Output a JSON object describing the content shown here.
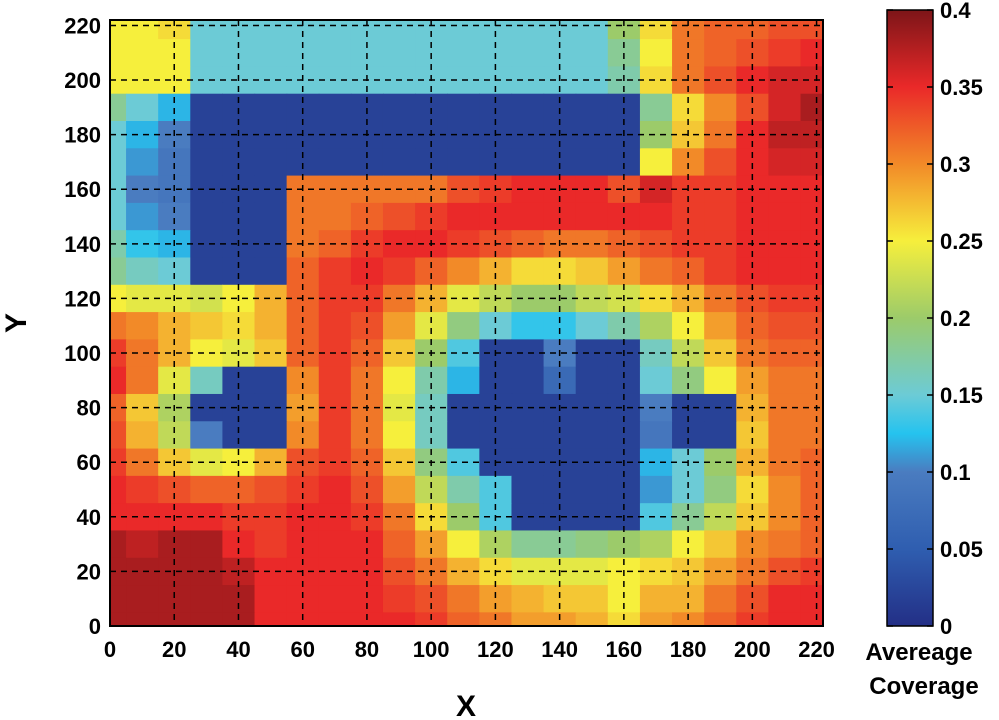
{
  "chart_data": {
    "type": "heatmap",
    "title": "",
    "xlabel": "X",
    "ylabel": "Y",
    "xlim": [
      0,
      222
    ],
    "ylim": [
      0,
      222
    ],
    "x_ticks": [
      0,
      20,
      40,
      60,
      80,
      100,
      120,
      140,
      160,
      180,
      200,
      220
    ],
    "y_ticks": [
      0,
      20,
      40,
      60,
      80,
      100,
      120,
      140,
      160,
      180,
      200,
      220
    ],
    "grid": true,
    "colorbar": {
      "label_line1": "Avereage",
      "label_line2": "Coverage",
      "range": [
        0,
        0.4
      ],
      "ticks": [
        "0",
        "0.05",
        "0.1",
        "0.15",
        "0.2",
        "0.25",
        "0.3",
        "0.35",
        "0.4"
      ],
      "colormap": "jet"
    },
    "x_coords": [
      0,
      10,
      20,
      30,
      40,
      50,
      60,
      70,
      80,
      90,
      100,
      110,
      120,
      130,
      140,
      150,
      160,
      170,
      180,
      190,
      200,
      210,
      220
    ],
    "y_coords": [
      220,
      210,
      200,
      190,
      180,
      170,
      160,
      150,
      140,
      130,
      120,
      110,
      100,
      90,
      80,
      70,
      60,
      50,
      40,
      30,
      20,
      10,
      0
    ],
    "coverage_grid": [
      [
        0.25,
        0.25,
        0.26,
        0.15,
        0.15,
        0.15,
        0.15,
        0.15,
        0.15,
        0.15,
        0.15,
        0.15,
        0.15,
        0.15,
        0.15,
        0.15,
        0.2,
        0.26,
        0.31,
        0.32,
        0.32,
        0.33,
        0.33
      ],
      [
        0.25,
        0.25,
        0.25,
        0.15,
        0.15,
        0.15,
        0.15,
        0.15,
        0.15,
        0.15,
        0.15,
        0.15,
        0.15,
        0.15,
        0.15,
        0.15,
        0.18,
        0.25,
        0.31,
        0.32,
        0.33,
        0.34,
        0.35
      ],
      [
        0.25,
        0.25,
        0.25,
        0.15,
        0.15,
        0.15,
        0.15,
        0.15,
        0.15,
        0.15,
        0.15,
        0.15,
        0.15,
        0.15,
        0.15,
        0.15,
        0.17,
        0.26,
        0.31,
        0.33,
        0.35,
        0.36,
        0.36
      ],
      [
        0.18,
        0.15,
        0.12,
        0.02,
        0.02,
        0.02,
        0.02,
        0.02,
        0.02,
        0.02,
        0.02,
        0.02,
        0.02,
        0.02,
        0.02,
        0.02,
        0.02,
        0.18,
        0.26,
        0.3,
        0.33,
        0.36,
        0.38
      ],
      [
        0.15,
        0.12,
        0.1,
        0.02,
        0.02,
        0.02,
        0.02,
        0.02,
        0.02,
        0.02,
        0.02,
        0.02,
        0.02,
        0.02,
        0.02,
        0.02,
        0.02,
        0.2,
        0.27,
        0.31,
        0.35,
        0.37,
        0.37
      ],
      [
        0.15,
        0.11,
        0.09,
        0.02,
        0.02,
        0.02,
        0.02,
        0.02,
        0.02,
        0.02,
        0.02,
        0.02,
        0.02,
        0.02,
        0.02,
        0.02,
        0.02,
        0.25,
        0.3,
        0.33,
        0.35,
        0.36,
        0.36
      ],
      [
        0.15,
        0.1,
        0.09,
        0.02,
        0.02,
        0.02,
        0.31,
        0.31,
        0.31,
        0.31,
        0.31,
        0.33,
        0.34,
        0.35,
        0.35,
        0.35,
        0.33,
        0.36,
        0.34,
        0.34,
        0.35,
        0.35,
        0.35
      ],
      [
        0.15,
        0.11,
        0.1,
        0.02,
        0.02,
        0.02,
        0.31,
        0.31,
        0.32,
        0.33,
        0.34,
        0.35,
        0.35,
        0.35,
        0.35,
        0.35,
        0.35,
        0.35,
        0.34,
        0.34,
        0.35,
        0.35,
        0.35
      ],
      [
        0.17,
        0.13,
        0.12,
        0.02,
        0.02,
        0.02,
        0.31,
        0.32,
        0.34,
        0.35,
        0.35,
        0.34,
        0.33,
        0.32,
        0.31,
        0.31,
        0.32,
        0.33,
        0.34,
        0.34,
        0.35,
        0.35,
        0.35
      ],
      [
        0.18,
        0.16,
        0.15,
        0.02,
        0.02,
        0.02,
        0.32,
        0.34,
        0.35,
        0.34,
        0.32,
        0.3,
        0.28,
        0.26,
        0.26,
        0.27,
        0.29,
        0.31,
        0.32,
        0.34,
        0.35,
        0.35,
        0.35
      ],
      [
        0.25,
        0.24,
        0.24,
        0.23,
        0.25,
        0.28,
        0.32,
        0.34,
        0.34,
        0.31,
        0.28,
        0.24,
        0.22,
        0.2,
        0.2,
        0.22,
        0.23,
        0.26,
        0.28,
        0.31,
        0.33,
        0.34,
        0.34
      ],
      [
        0.31,
        0.3,
        0.28,
        0.27,
        0.26,
        0.28,
        0.32,
        0.34,
        0.33,
        0.29,
        0.24,
        0.19,
        0.15,
        0.13,
        0.13,
        0.15,
        0.17,
        0.21,
        0.25,
        0.29,
        0.32,
        0.33,
        0.33
      ],
      [
        0.34,
        0.31,
        0.28,
        0.25,
        0.24,
        0.27,
        0.32,
        0.34,
        0.32,
        0.27,
        0.2,
        0.14,
        0.02,
        0.02,
        0.1,
        0.02,
        0.02,
        0.16,
        0.22,
        0.27,
        0.31,
        0.32,
        0.32
      ],
      [
        0.35,
        0.31,
        0.24,
        0.16,
        0.02,
        0.02,
        0.3,
        0.34,
        0.31,
        0.25,
        0.17,
        0.12,
        0.02,
        0.02,
        0.07,
        0.02,
        0.02,
        0.15,
        0.19,
        0.25,
        0.29,
        0.31,
        0.31
      ],
      [
        0.32,
        0.27,
        0.21,
        0.02,
        0.02,
        0.02,
        0.29,
        0.34,
        0.31,
        0.24,
        0.16,
        0.02,
        0.02,
        0.02,
        0.02,
        0.02,
        0.02,
        0.1,
        0.02,
        0.02,
        0.28,
        0.31,
        0.31
      ],
      [
        0.33,
        0.28,
        0.22,
        0.1,
        0.02,
        0.02,
        0.3,
        0.34,
        0.31,
        0.25,
        0.16,
        0.02,
        0.02,
        0.02,
        0.02,
        0.02,
        0.02,
        0.09,
        0.02,
        0.02,
        0.27,
        0.31,
        0.31
      ],
      [
        0.34,
        0.31,
        0.27,
        0.24,
        0.25,
        0.28,
        0.33,
        0.34,
        0.32,
        0.27,
        0.19,
        0.14,
        0.02,
        0.02,
        0.02,
        0.02,
        0.02,
        0.12,
        0.15,
        0.2,
        0.28,
        0.31,
        0.32
      ],
      [
        0.35,
        0.34,
        0.33,
        0.32,
        0.32,
        0.33,
        0.34,
        0.35,
        0.33,
        0.29,
        0.22,
        0.17,
        0.14,
        0.02,
        0.02,
        0.02,
        0.02,
        0.11,
        0.15,
        0.19,
        0.26,
        0.3,
        0.32
      ],
      [
        0.35,
        0.35,
        0.35,
        0.35,
        0.34,
        0.34,
        0.35,
        0.35,
        0.34,
        0.31,
        0.26,
        0.2,
        0.14,
        0.02,
        0.02,
        0.02,
        0.02,
        0.14,
        0.18,
        0.22,
        0.27,
        0.3,
        0.32
      ],
      [
        0.38,
        0.37,
        0.38,
        0.38,
        0.35,
        0.34,
        0.35,
        0.35,
        0.35,
        0.32,
        0.29,
        0.25,
        0.21,
        0.18,
        0.18,
        0.19,
        0.2,
        0.21,
        0.25,
        0.27,
        0.3,
        0.31,
        0.32
      ],
      [
        0.38,
        0.38,
        0.38,
        0.38,
        0.37,
        0.35,
        0.35,
        0.35,
        0.35,
        0.33,
        0.31,
        0.28,
        0.26,
        0.24,
        0.24,
        0.24,
        0.25,
        0.26,
        0.27,
        0.29,
        0.31,
        0.33,
        0.34
      ],
      [
        0.38,
        0.38,
        0.38,
        0.38,
        0.38,
        0.35,
        0.35,
        0.35,
        0.35,
        0.34,
        0.33,
        0.31,
        0.29,
        0.28,
        0.27,
        0.27,
        0.25,
        0.28,
        0.28,
        0.31,
        0.33,
        0.35,
        0.35
      ],
      [
        0.38,
        0.38,
        0.38,
        0.38,
        0.38,
        0.35,
        0.35,
        0.35,
        0.35,
        0.35,
        0.34,
        0.32,
        0.31,
        0.29,
        0.29,
        0.28,
        0.26,
        0.29,
        0.3,
        0.32,
        0.34,
        0.35,
        0.35
      ]
    ]
  }
}
